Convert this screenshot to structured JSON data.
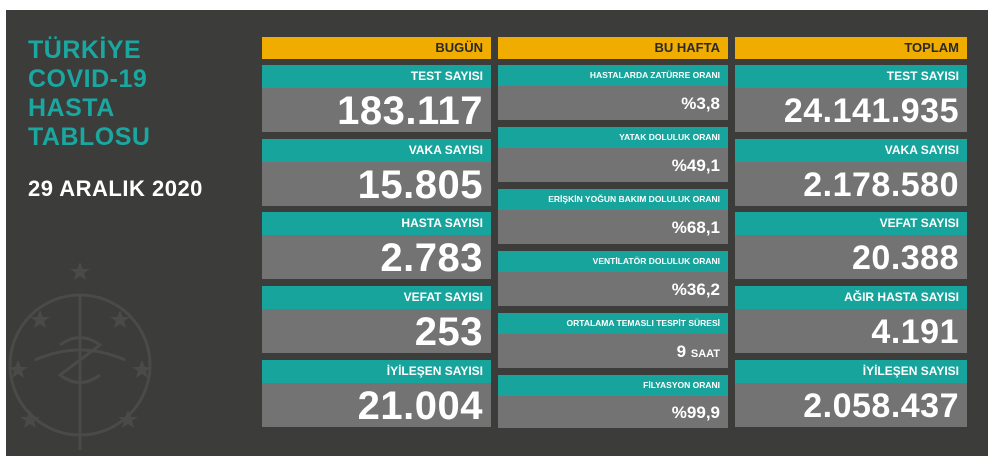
{
  "title": {
    "line1": "TÜRKİYE",
    "line2": "COVID-19",
    "line3": "HASTA",
    "line4": "TABLOSU"
  },
  "date": "29 ARALIK 2020",
  "colors": {
    "background": "#3c3c3b",
    "header": "#f0ad00",
    "label": "#17a49c",
    "value": "#737373",
    "title": "#19a7a0"
  },
  "today": {
    "header": "BUGÜN",
    "items": [
      {
        "label": "TEST SAYISI",
        "value": "183.117"
      },
      {
        "label": "VAKA SAYISI",
        "value": "15.805"
      },
      {
        "label": "HASTA SAYISI",
        "value": "2.783"
      },
      {
        "label": "VEFAT SAYISI",
        "value": "253"
      },
      {
        "label": "İYİLEŞEN SAYISI",
        "value": "21.004"
      }
    ]
  },
  "week": {
    "header": "BU HAFTA",
    "items": [
      {
        "label": "HASTALARDA ZATÜRRE ORANI",
        "value": "%3,8"
      },
      {
        "label": "YATAK DOLULUK ORANI",
        "value": "%49,1"
      },
      {
        "label": "ERİŞKİN YOĞUN BAKIM DOLULUK ORANI",
        "value": "%68,1"
      },
      {
        "label": "VENTİLATÖR DOLULUK ORANI",
        "value": "%36,2"
      },
      {
        "label": "ORTALAMA TEMASLI TESPİT SÜRESİ",
        "value": "9",
        "unit": "SAAT"
      },
      {
        "label": "FİLYASYON ORANI",
        "value": "%99,9"
      }
    ]
  },
  "total": {
    "header": "TOPLAM",
    "items": [
      {
        "label": "TEST SAYISI",
        "value": "24.141.935"
      },
      {
        "label": "VAKA SAYISI",
        "value": "2.178.580"
      },
      {
        "label": "VEFAT SAYISI",
        "value": "20.388"
      },
      {
        "label": "AĞIR HASTA SAYISI",
        "value": "4.191"
      },
      {
        "label": "İYİLEŞEN SAYISI",
        "value": "2.058.437"
      }
    ]
  }
}
